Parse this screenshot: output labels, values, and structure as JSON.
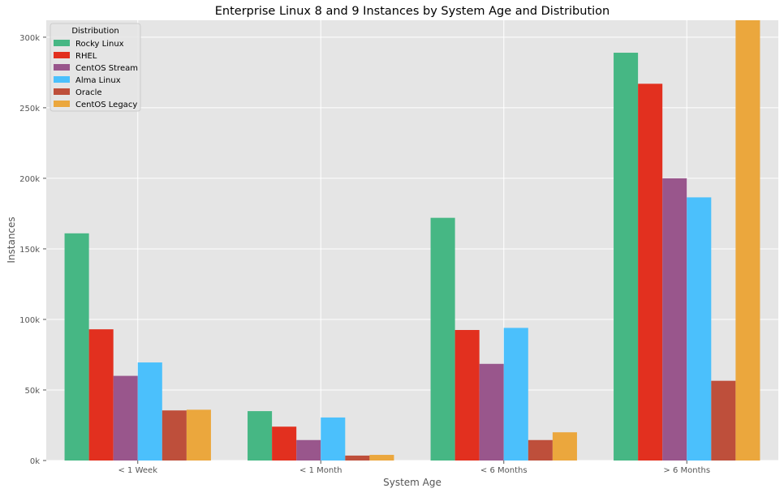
{
  "chart_data": {
    "type": "bar",
    "title": "Enterprise Linux 8 and 9 Instances by System Age and Distribution",
    "xlabel": "System Age",
    "ylabel": "Instances",
    "categories": [
      "< 1 Week",
      "< 1 Month",
      "< 6 Months",
      "> 6 Months"
    ],
    "series": [
      {
        "name": "Rocky Linux",
        "color": "#46b784",
        "values": [
          161000,
          35000,
          172000,
          289000
        ]
      },
      {
        "name": "RHEL",
        "color": "#e2301f",
        "values": [
          93000,
          24000,
          92500,
          267000
        ]
      },
      {
        "name": "CentOS Stream",
        "color": "#99568c",
        "values": [
          60000,
          14500,
          68500,
          200000
        ]
      },
      {
        "name": "Alma Linux",
        "color": "#4bc0fc",
        "values": [
          69500,
          30500,
          94000,
          186500
        ]
      },
      {
        "name": "Oracle",
        "color": "#be4f3b",
        "values": [
          35500,
          3500,
          14500,
          56500
        ]
      },
      {
        "name": "CentOS Legacy",
        "color": "#eba73d",
        "values": [
          36000,
          4000,
          20000,
          320000
        ]
      }
    ],
    "ylim": [
      0,
      312000
    ],
    "yticks": [
      0,
      50000,
      100000,
      150000,
      200000,
      250000,
      300000
    ],
    "ytick_labels": [
      "0k",
      "50k",
      "100k",
      "150k",
      "200k",
      "250k",
      "300k"
    ],
    "grid": true,
    "legend": {
      "title": "Distribution",
      "placement": "top-left"
    },
    "background": "#e5e5e5"
  }
}
